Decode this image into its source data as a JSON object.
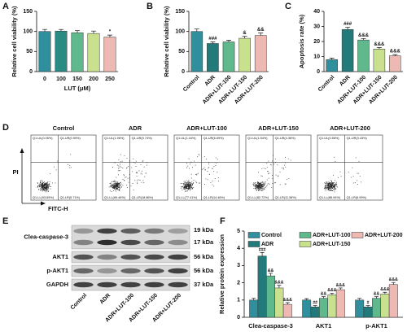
{
  "chart_data": [
    {
      "type": "bar",
      "label": "A",
      "ylabel": "Relative cell viability (%)",
      "xlabel": "LUT (μM)",
      "categories": [
        "0",
        "100",
        "150",
        "200",
        "250"
      ],
      "values": [
        100,
        101,
        97,
        95,
        86
      ],
      "errors": [
        5,
        4,
        5,
        6,
        5
      ],
      "annotations": [
        null,
        null,
        null,
        null,
        "*"
      ],
      "colors": [
        "#2f8f9d",
        "#2a8a84",
        "#5fb98c",
        "#c9e08f",
        "#efb9b3"
      ],
      "ylim": [
        0,
        150
      ],
      "yticks": [
        0,
        50,
        100,
        150
      ]
    },
    {
      "type": "bar",
      "label": "B",
      "ylabel": "Relative cell viability (%)",
      "categories": [
        "Control",
        "ADR",
        "ADR+LUT-100",
        "ADR+LUT-150",
        "ADR+LUT-200"
      ],
      "values": [
        100,
        70,
        74,
        83,
        90
      ],
      "errors": [
        6,
        4,
        4,
        5,
        6
      ],
      "annotations": [
        null,
        "###",
        null,
        "&",
        "&&"
      ],
      "colors": [
        "#2f8f9d",
        "#237a7a",
        "#5fb98c",
        "#c9e08f",
        "#efb9b3"
      ],
      "ylim": [
        0,
        150
      ],
      "yticks": [
        0,
        50,
        100,
        150
      ]
    },
    {
      "type": "bar",
      "label": "C",
      "ylabel": "Apoptosis rate (%)",
      "categories": [
        "Control",
        "ADR",
        "ADR+LUT-100",
        "ADR+LUT-150",
        "ADR+LUT-200"
      ],
      "values": [
        8,
        28,
        21,
        15,
        10.5
      ],
      "errors": [
        1,
        1.5,
        1,
        1,
        0.8
      ],
      "annotations": [
        null,
        "###",
        "&&&",
        "&&&",
        "&&&"
      ],
      "colors": [
        "#2f8f9d",
        "#237a7a",
        "#5fb98c",
        "#c9e08f",
        "#efb9b3"
      ],
      "ylim": [
        0,
        40
      ],
      "yticks": [
        0,
        10,
        20,
        30,
        40
      ]
    },
    {
      "type": "flow-cytometry",
      "label": "D",
      "ylabel": "PI",
      "xlabel": "FITC-H",
      "panels": [
        {
          "title": "Control",
          "quadrants": [
            "Q1-UL(0.05%)",
            "Q1-UR(0.59%)",
            "Q1-LL(93.65%)",
            "Q1-LR(5.71%)"
          ]
        },
        {
          "title": "ADR",
          "quadrants": [
            "Q1-UL(1.96%)",
            "Q1-UR(9.74%)",
            "Q1-LL(69.46%)",
            "Q1-LR(18.86%)"
          ]
        },
        {
          "title": "ADR+LUT-100",
          "quadrants": [
            "Q1-UL(1.44%)",
            "Q1-UR(6.69%)",
            "Q1-LL(77.41%)",
            "Q1-LR(14.46%)"
          ]
        },
        {
          "title": "ADR+LUT-150",
          "quadrants": [
            "Q1-UL(1.54%)",
            "Q1-UR(4.36%)",
            "Q1-LL(82.72%)",
            "Q1-LR(11.38%)"
          ]
        },
        {
          "title": "ADR+LUT-200",
          "quadrants": [
            "Q1-UL(0.56%)",
            "Q1-UR(3.43%)",
            "Q1-LL(88.94%)",
            "Q1-LR(6.99%)"
          ]
        }
      ]
    },
    {
      "type": "western-blot",
      "label": "E",
      "proteins": [
        "Clea-caspase-3",
        "AKT1",
        "p-AKT1",
        "GAPDH"
      ],
      "sizes": [
        "19 kDa",
        "17 kDa",
        "56 kDa",
        "56 kDa",
        "37 kDa"
      ],
      "lanes": [
        "Control",
        "ADR",
        "ADR+LUT-100",
        "ADR+LUT-150",
        "ADR+LUT-200"
      ]
    },
    {
      "type": "grouped-bar",
      "label": "F",
      "ylabel": "Relative protein expression",
      "categories": [
        "Clea-caspase-3",
        "AKT1",
        "p-AKT1"
      ],
      "series": [
        {
          "name": "Control",
          "color": "#2f8f9d",
          "values": [
            1.0,
            1.0,
            1.0
          ],
          "errors": [
            0.1,
            0.08,
            0.1
          ],
          "annotations": [
            null,
            null,
            null
          ]
        },
        {
          "name": "ADR",
          "color": "#237a7a",
          "values": [
            3.55,
            0.6,
            0.6
          ],
          "errors": [
            0.2,
            0.08,
            0.08
          ],
          "annotations": [
            "###",
            "##",
            "#"
          ]
        },
        {
          "name": "ADR+LUT-100",
          "color": "#5fb98c",
          "values": [
            2.4,
            1.1,
            1.1
          ],
          "errors": [
            0.15,
            0.1,
            0.1
          ],
          "annotations": [
            "&&",
            "&&",
            "&&"
          ]
        },
        {
          "name": "ADR+LUT-150",
          "color": "#c9e08f",
          "values": [
            1.7,
            1.3,
            1.35
          ],
          "errors": [
            0.15,
            0.1,
            0.1
          ],
          "annotations": [
            "&&&",
            "&&&",
            "&&&"
          ]
        },
        {
          "name": "ADR+LUT-200",
          "color": "#efb9b3",
          "values": [
            0.75,
            1.6,
            1.9
          ],
          "errors": [
            0.1,
            0.1,
            0.12
          ],
          "annotations": [
            "&&&",
            "&&&",
            "&&&"
          ]
        }
      ],
      "ylim": [
        0,
        5
      ],
      "yticks": [
        0,
        1,
        2,
        3,
        4,
        5
      ]
    }
  ]
}
